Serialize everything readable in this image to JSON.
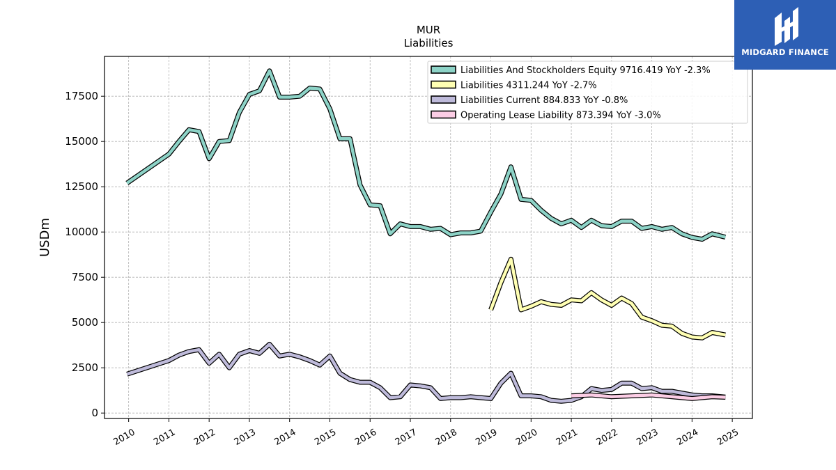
{
  "brand": {
    "name": "MIDGARD FINANCE",
    "color": "#2d5fb5"
  },
  "chart_data": {
    "type": "line",
    "title": "MUR",
    "subtitle": "Liabilities",
    "xlabel": "",
    "ylabel": "USDm",
    "xlim": [
      2009.4,
      2025.5
    ],
    "ylim": [
      -300,
      19700
    ],
    "x_ticks": [
      2010,
      2011,
      2012,
      2013,
      2014,
      2015,
      2016,
      2017,
      2018,
      2019,
      2020,
      2021,
      2022,
      2023,
      2024,
      2025
    ],
    "x_tick_labels": [
      "2010",
      "2011",
      "2012",
      "2013",
      "2014",
      "2015",
      "2016",
      "2017",
      "2018",
      "2019",
      "2020",
      "2021",
      "2022",
      "2023",
      "2024",
      "2025"
    ],
    "y_ticks": [
      0,
      2500,
      5000,
      7500,
      10000,
      12500,
      15000,
      17500
    ],
    "y_tick_labels": [
      "0",
      "2500",
      "5000",
      "7500",
      "10000",
      "12500",
      "15000",
      "17500"
    ],
    "grid": true,
    "legend_position": "top-right",
    "series": [
      {
        "name": "Liabilities And Stockholders Equity",
        "legend_label": "Liabilities And Stockholders Equity  9716.419 YoY -2.3%",
        "color": "#8dd3c7",
        "x": [
          2009.96,
          2011.0,
          2011.25,
          2011.5,
          2011.75,
          2012.0,
          2012.25,
          2012.5,
          2012.75,
          2013.0,
          2013.25,
          2013.5,
          2013.75,
          2014.0,
          2014.25,
          2014.5,
          2014.75,
          2015.0,
          2015.25,
          2015.5,
          2015.75,
          2016.0,
          2016.25,
          2016.5,
          2016.75,
          2017.0,
          2017.25,
          2017.5,
          2017.75,
          2018.0,
          2018.25,
          2018.5,
          2018.75,
          2019.0,
          2019.25,
          2019.5,
          2019.75,
          2020.0,
          2020.25,
          2020.5,
          2020.75,
          2021.0,
          2021.25,
          2021.5,
          2021.75,
          2022.0,
          2022.25,
          2022.5,
          2022.75,
          2023.0,
          2023.25,
          2023.5,
          2023.75,
          2024.0,
          2024.25,
          2024.5,
          2024.83
        ],
        "values": [
          12700,
          14300,
          15000,
          15650,
          15550,
          14050,
          15000,
          15050,
          16600,
          17600,
          17800,
          18900,
          17450,
          17450,
          17500,
          17950,
          17900,
          16800,
          15150,
          15150,
          12600,
          11500,
          11450,
          9900,
          10450,
          10300,
          10300,
          10150,
          10200,
          9850,
          9950,
          9950,
          10050,
          11100,
          12100,
          13600,
          11800,
          11750,
          11200,
          10750,
          10450,
          10650,
          10250,
          10650,
          10350,
          10300,
          10600,
          10600,
          10200,
          10300,
          10150,
          10250,
          9900,
          9700,
          9600,
          9900,
          9716.419
        ]
      },
      {
        "name": "Liabilities",
        "legend_label": "Liabilities  4311.244 YoY -2.7%",
        "color": "#ffffb3",
        "x": [
          2019.0,
          2019.25,
          2019.5,
          2019.75,
          2020.0,
          2020.25,
          2020.5,
          2020.75,
          2021.0,
          2021.25,
          2021.5,
          2021.75,
          2022.0,
          2022.25,
          2022.5,
          2022.75,
          2023.0,
          2023.25,
          2023.5,
          2023.75,
          2024.0,
          2024.25,
          2024.5,
          2024.83
        ],
        "values": [
          5700,
          7200,
          8500,
          5700,
          5900,
          6150,
          6000,
          5950,
          6250,
          6200,
          6650,
          6250,
          5950,
          6350,
          6050,
          5300,
          5100,
          4850,
          4800,
          4400,
          4200,
          4150,
          4450,
          4311.244
        ]
      },
      {
        "name": "Liabilities Current",
        "legend_label": "Liabilities Current  884.833 YoY -0.8%",
        "color": "#bebada",
        "x": [
          2009.96,
          2011.0,
          2011.25,
          2011.5,
          2011.75,
          2012.0,
          2012.25,
          2012.5,
          2012.75,
          2013.0,
          2013.25,
          2013.5,
          2013.75,
          2014.0,
          2014.25,
          2014.5,
          2014.75,
          2015.0,
          2015.25,
          2015.5,
          2015.75,
          2016.0,
          2016.25,
          2016.5,
          2016.75,
          2017.0,
          2017.25,
          2017.5,
          2017.75,
          2018.0,
          2018.25,
          2018.5,
          2018.75,
          2019.0,
          2019.25,
          2019.5,
          2019.75,
          2020.0,
          2020.25,
          2020.5,
          2020.75,
          2021.0,
          2021.25,
          2021.5,
          2021.75,
          2022.0,
          2022.25,
          2022.5,
          2022.75,
          2023.0,
          2023.25,
          2023.5,
          2023.75,
          2024.0,
          2024.25,
          2024.5,
          2024.83
        ],
        "values": [
          2150,
          2900,
          3200,
          3400,
          3500,
          2750,
          3250,
          2500,
          3250,
          3450,
          3300,
          3800,
          3150,
          3250,
          3100,
          2900,
          2650,
          3150,
          2200,
          1850,
          1700,
          1700,
          1400,
          850,
          900,
          1550,
          1500,
          1400,
          800,
          850,
          850,
          900,
          850,
          800,
          1650,
          2200,
          950,
          950,
          900,
          700,
          650,
          700,
          900,
          1350,
          1250,
          1300,
          1650,
          1650,
          1350,
          1400,
          1200,
          1200,
          1100,
          1000,
          950,
          950,
          884.833
        ]
      },
      {
        "name": "Operating Lease Liability",
        "legend_label": "Operating Lease Liability  873.394 YoY -3.0%",
        "color": "#fccde5",
        "x": [
          2021.0,
          2021.5,
          2022.0,
          2022.5,
          2023.0,
          2023.5,
          2024.0,
          2024.5,
          2024.83
        ],
        "values": [
          950,
          1000,
          900,
          950,
          1000,
          900,
          800,
          900,
          873.394
        ]
      }
    ]
  }
}
